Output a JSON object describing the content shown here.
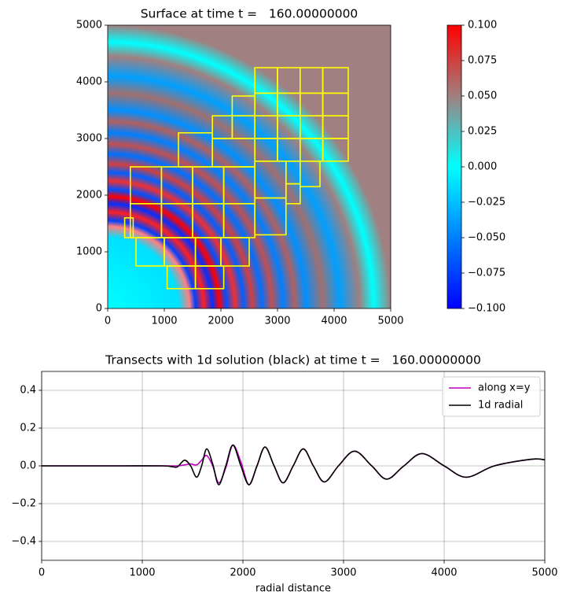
{
  "chart_data": [
    {
      "type": "heatmap",
      "title": "Surface at time t =   160.00000000",
      "xlim": [
        0,
        5000
      ],
      "ylim": [
        0,
        5000
      ],
      "xticks": [
        0,
        1000,
        2000,
        3000,
        4000,
        5000
      ],
      "yticks": [
        0,
        1000,
        2000,
        3000,
        4000,
        5000
      ],
      "clim": [
        -0.1,
        0.1
      ],
      "cticks": [
        {
          "value": -0.1,
          "label": "−0.100"
        },
        {
          "value": -0.075,
          "label": "−0.075"
        },
        {
          "value": -0.05,
          "label": "−0.050"
        },
        {
          "value": -0.025,
          "label": "−0.025"
        },
        {
          "value": 0,
          "label": "0.000"
        },
        {
          "value": 0.025,
          "label": "0.025"
        },
        {
          "value": 0.05,
          "label": "0.050"
        },
        {
          "value": 0.075,
          "label": "0.075"
        },
        {
          "value": 0.1,
          "label": "0.100"
        }
      ],
      "cmap": [
        "#0000ff",
        "#0080ff",
        "#00ffff",
        "#a08080",
        "#ff0000"
      ],
      "patch_color": "#ffff00",
      "patches": [
        [
          2600,
          3000,
          2600,
          3000
        ],
        [
          3000,
          3400,
          2600,
          3000
        ],
        [
          3400,
          3800,
          2600,
          3000
        ],
        [
          3800,
          4250,
          2600,
          3000
        ],
        [
          2600,
          3000,
          3000,
          3400
        ],
        [
          3000,
          3400,
          3000,
          3400
        ],
        [
          3400,
          3800,
          3000,
          3400
        ],
        [
          3800,
          4250,
          3000,
          3400
        ],
        [
          2600,
          3000,
          3400,
          3800
        ],
        [
          3000,
          3400,
          3400,
          3800
        ],
        [
          3400,
          3800,
          3400,
          3800
        ],
        [
          3800,
          4250,
          3400,
          3800
        ],
        [
          2600,
          3000,
          3800,
          4250
        ],
        [
          3000,
          3400,
          3800,
          4250
        ],
        [
          3400,
          3800,
          3800,
          4250
        ],
        [
          3800,
          4250,
          3800,
          4250
        ],
        [
          2200,
          2600,
          3400,
          3750
        ],
        [
          1850,
          2200,
          3000,
          3400
        ],
        [
          2200,
          2600,
          3000,
          3400
        ],
        [
          1250,
          1850,
          2500,
          3100
        ],
        [
          1850,
          2600,
          2500,
          3000
        ],
        [
          400,
          950,
          1250,
          1850
        ],
        [
          950,
          1500,
          1250,
          1850
        ],
        [
          1500,
          2050,
          1250,
          1850
        ],
        [
          2050,
          2600,
          1250,
          1850
        ],
        [
          400,
          950,
          1850,
          2500
        ],
        [
          950,
          1500,
          1850,
          2500
        ],
        [
          1500,
          2050,
          1850,
          2500
        ],
        [
          2050,
          2600,
          1850,
          2500
        ],
        [
          2600,
          3150,
          1300,
          1950
        ],
        [
          2600,
          3150,
          1950,
          2600
        ],
        [
          3150,
          3400,
          1850,
          2200
        ],
        [
          3150,
          3400,
          2200,
          2600
        ],
        [
          3400,
          3750,
          2150,
          2600
        ],
        [
          300,
          450,
          1250,
          1600
        ],
        [
          500,
          1000,
          750,
          1250
        ],
        [
          1000,
          1550,
          750,
          1250
        ],
        [
          1550,
          2000,
          750,
          1250
        ],
        [
          2000,
          2500,
          750,
          1250
        ],
        [
          1050,
          1550,
          350,
          750
        ],
        [
          1550,
          2050,
          350,
          750
        ]
      ]
    },
    {
      "type": "line",
      "title": "Transects with 1d solution (black) at time t =   160.00000000",
      "xlabel": "radial distance",
      "xlim": [
        0,
        5000
      ],
      "ylim": [
        -0.5,
        0.5
      ],
      "xticks": [
        0,
        1000,
        2000,
        3000,
        4000,
        5000
      ],
      "yticks": [
        {
          "value": -0.4,
          "label": "−0.4"
        },
        {
          "value": -0.2,
          "label": "−0.2"
        },
        {
          "value": 0,
          "label": "0.0"
        },
        0.2,
        0.4
      ],
      "grid": true,
      "legend": "upper right",
      "x": [
        0,
        400,
        800,
        1200,
        1300,
        1350,
        1420,
        1480,
        1540,
        1590,
        1640,
        1700,
        1760,
        1830,
        1900,
        1980,
        2060,
        2140,
        2220,
        2310,
        2400,
        2500,
        2600,
        2700,
        2810,
        2950,
        3110,
        3280,
        3430,
        3600,
        3780,
        4000,
        4220,
        4500,
        4870,
        5000
      ],
      "series": [
        {
          "name": "along x=y",
          "color": "#bf00bf",
          "values": [
            0,
            0,
            0,
            0,
            0,
            0,
            0.005,
            0.01,
            0.005,
            0.03,
            0.055,
            0,
            -0.09,
            -0.01,
            0.11,
            0.02,
            -0.1,
            0,
            0.1,
            0,
            -0.09,
            0,
            0.09,
            0,
            -0.085,
            0,
            0.078,
            0,
            -0.07,
            0,
            0.065,
            0,
            -0.06,
            0,
            0.035,
            0.032
          ]
        },
        {
          "name": "1d radial",
          "color": "#000000",
          "values": [
            0,
            0,
            0,
            0,
            -0.005,
            -0.005,
            0.03,
            0,
            -0.06,
            0,
            0.09,
            0.01,
            -0.1,
            0,
            0.11,
            0,
            -0.1,
            0,
            0.1,
            0,
            -0.09,
            0,
            0.09,
            0,
            -0.085,
            0,
            0.078,
            0,
            -0.07,
            0,
            0.065,
            0,
            -0.06,
            0,
            0.035,
            0.032
          ]
        }
      ]
    }
  ]
}
